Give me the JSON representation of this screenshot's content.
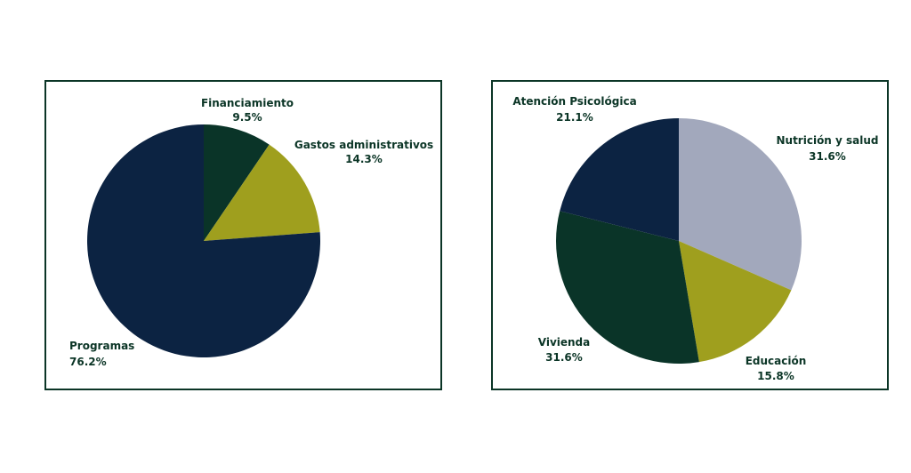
{
  "colors": {
    "navy": "#0c2342",
    "dark_green": "#0a3428",
    "olive": "#9f9f1e",
    "gray_blue": "#a2a8bc",
    "text": "#0b3526",
    "border": "#0b3526"
  },
  "chart_data": [
    {
      "type": "pie",
      "title": "",
      "slices": [
        {
          "label": "Financiamiento",
          "value": 9.5,
          "display": "9.5%",
          "color": "#0a3428"
        },
        {
          "label": "Gastos administrativos",
          "value": 14.3,
          "display": "14.3%",
          "color": "#9f9f1e"
        },
        {
          "label": "Programas",
          "value": 76.2,
          "display": "76.2%",
          "color": "#0c2342"
        }
      ]
    },
    {
      "type": "pie",
      "title": "",
      "slices": [
        {
          "label": "Nutrición y salud",
          "value": 31.6,
          "display": "31.6%",
          "color": "#a2a8bc"
        },
        {
          "label": "Educación",
          "value": 15.8,
          "display": "15.8%",
          "color": "#9f9f1e"
        },
        {
          "label": "Vivienda",
          "value": 31.6,
          "display": "31.6%",
          "color": "#0a3428"
        },
        {
          "label": "Atención Psicológica",
          "value": 21.1,
          "display": "21.1%",
          "color": "#0c2342"
        }
      ]
    }
  ]
}
